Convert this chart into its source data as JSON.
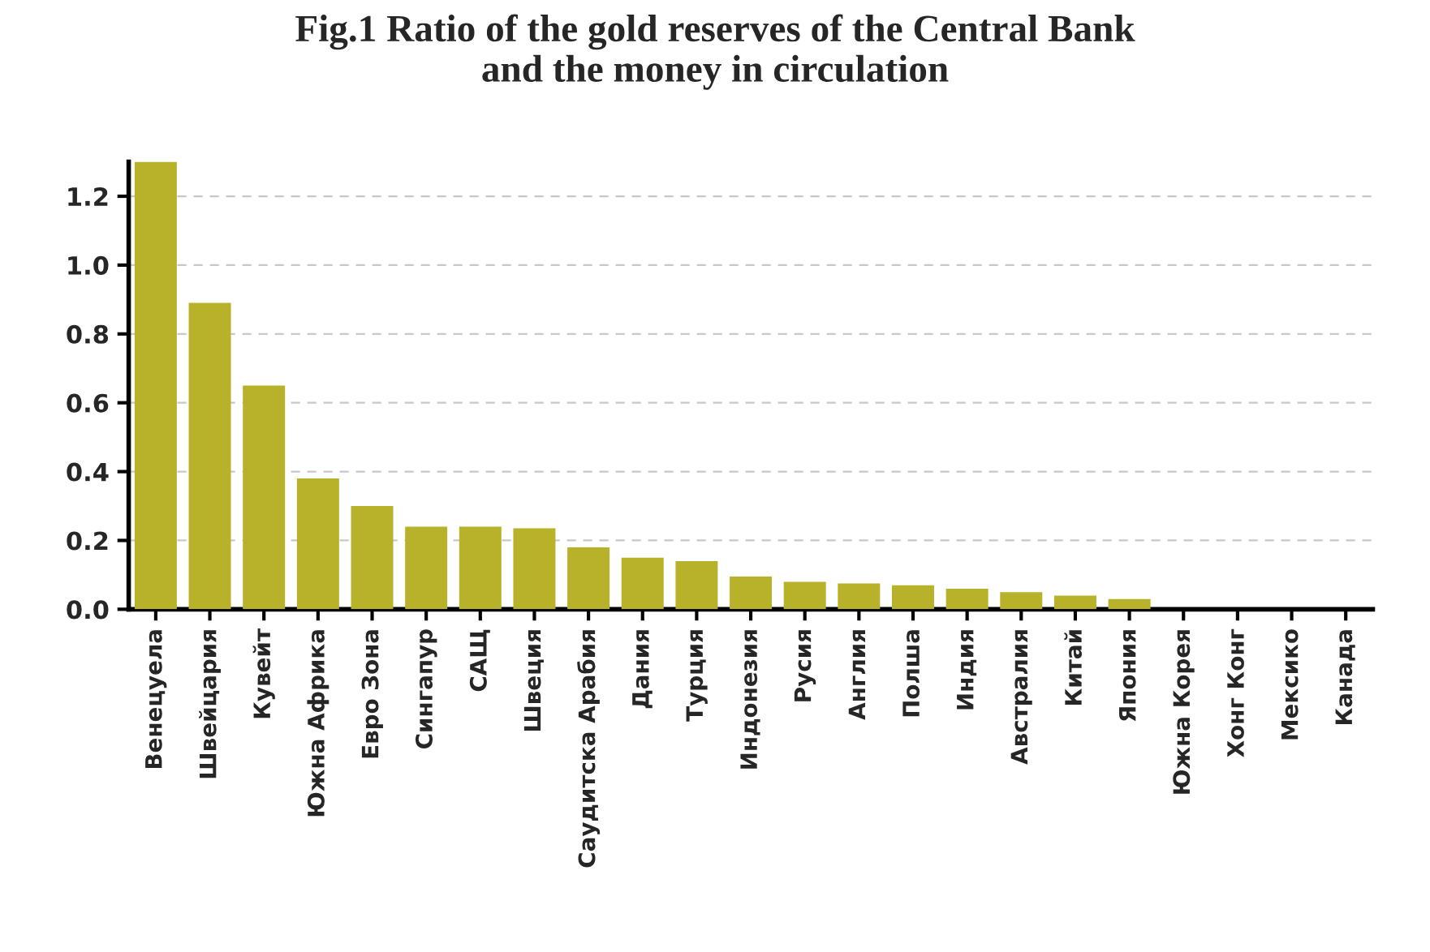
{
  "chart_data": {
    "type": "bar",
    "title": "Fig.1 Ratio of the gold reserves of the Central Bank\nand the money in circulation",
    "categories": [
      "Венецуела",
      "Швейцария",
      "Кувейт",
      "Южна Африка",
      "Евро Зона",
      "Сингапур",
      "САЩ",
      "Швеция",
      "Саудитска Арабия",
      "Дания",
      "Турция",
      "Индонезия",
      "Русия",
      "Англия",
      "Полша",
      "Индия",
      "Австралия",
      "Китай",
      "Япония",
      "Южна Корея",
      "Хонг Конг",
      "Мексико",
      "Канада"
    ],
    "values": [
      1.3,
      0.89,
      0.65,
      0.38,
      0.3,
      0.24,
      0.24,
      0.235,
      0.18,
      0.15,
      0.14,
      0.095,
      0.08,
      0.075,
      0.07,
      0.06,
      0.05,
      0.04,
      0.03,
      0,
      0,
      0,
      0
    ],
    "color": "#b8b22a",
    "ylim": [
      0,
      1.3
    ],
    "yticks": [
      {
        "value": 0,
        "label": "0.0"
      },
      0.2,
      0.4,
      0.6,
      0.8,
      {
        "value": 1,
        "label": "1.0"
      },
      1.2
    ],
    "grid": "y"
  }
}
